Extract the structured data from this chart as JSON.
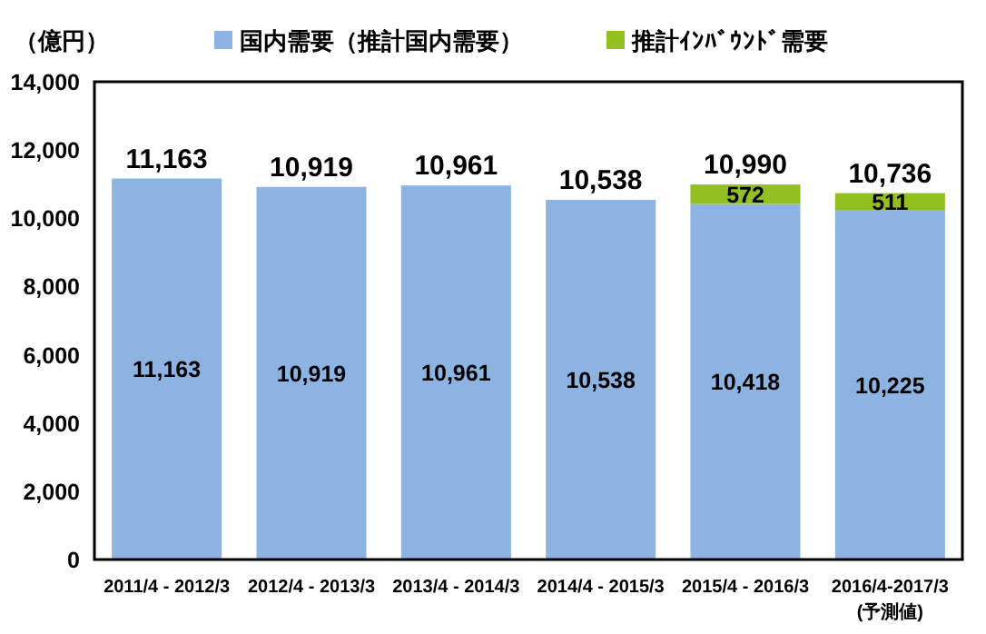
{
  "chart_data": {
    "type": "bar",
    "stacked": true,
    "ylabel": "（億円）",
    "categories": [
      "2011/4 - 2012/3",
      "2012/4 - 2013/3",
      "2013/4 - 2014/3",
      "2014/4 - 2015/3",
      "2015/4 - 2016/3",
      "2016/4-2017/3\n(予測値)"
    ],
    "series": [
      {
        "name": "国内需要（推計国内需要）",
        "color": "#8db3e2",
        "values": [
          11163,
          10919,
          10961,
          10538,
          10418,
          10225
        ],
        "value_labels": [
          "11,163",
          "10,919",
          "10,961",
          "10,538",
          "10,418",
          "10,225"
        ]
      },
      {
        "name": "推計ｲﾝﾊﾞｳﾝﾄﾞ需要",
        "color": "#92c020",
        "values": [
          null,
          null,
          null,
          null,
          572,
          511
        ],
        "value_labels": [
          null,
          null,
          null,
          null,
          "572",
          "511"
        ]
      }
    ],
    "ylim": [
      0,
      14000
    ],
    "yticks": [
      {
        "value": 0,
        "label": "0"
      },
      {
        "value": 2000,
        "label": "2,000"
      },
      {
        "value": 4000,
        "label": "4,000"
      },
      {
        "value": 6000,
        "label": "6,000"
      },
      {
        "value": 8000,
        "label": "8,000"
      },
      {
        "value": 10000,
        "label": "10,000"
      },
      {
        "value": 12000,
        "label": "12,000"
      },
      {
        "value": 14000,
        "label": "14,000"
      }
    ],
    "totals": [
      "11,163",
      "10,919",
      "10,961",
      "10,538",
      "10,990",
      "10,736"
    ],
    "legend": "top",
    "grid": false
  }
}
